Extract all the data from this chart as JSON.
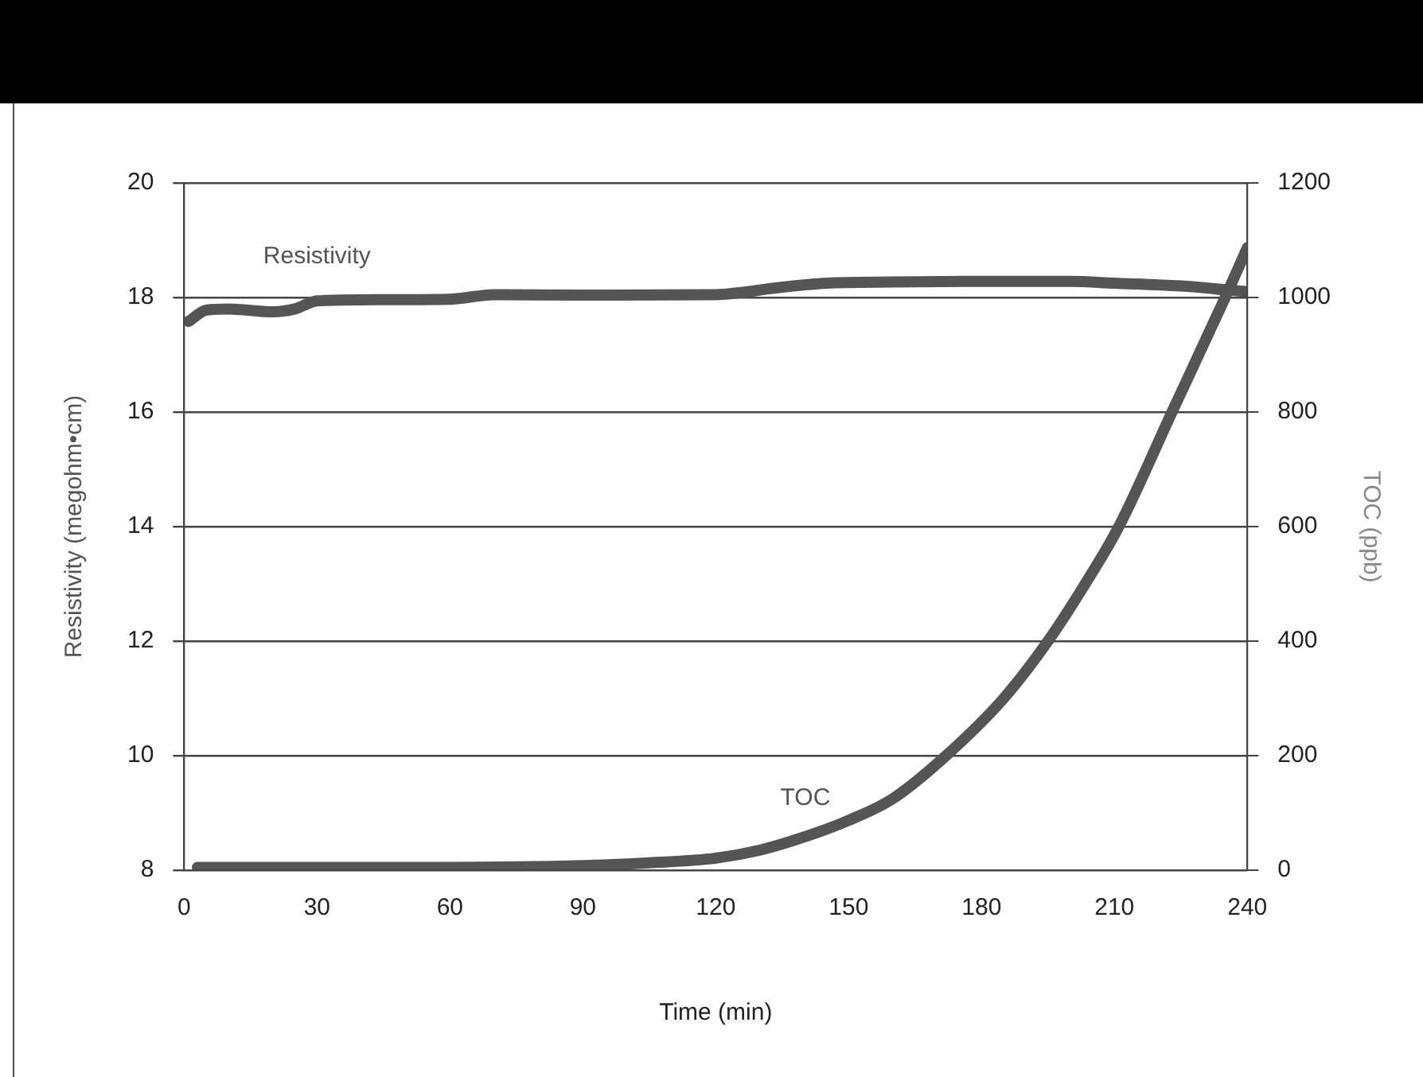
{
  "chart_data": {
    "type": "line",
    "xlabel": "Time (min)",
    "ylabel": "Resistivity (megohm•cm)",
    "y2label": "TOC (ppb)",
    "xlim": [
      0,
      240
    ],
    "xticks": [
      0,
      30,
      60,
      90,
      120,
      150,
      180,
      210,
      240
    ],
    "ylim": [
      8,
      20
    ],
    "yticks": [
      8,
      10,
      12,
      14,
      16,
      18,
      20
    ],
    "y2lim": [
      0,
      1200
    ],
    "y2ticks": [
      0,
      200,
      400,
      600,
      800,
      1000,
      1200
    ],
    "grid": "y",
    "legend": false,
    "marker": "none",
    "line_style": "solid",
    "series": [
      {
        "name": "Resistivity",
        "color": "#555555",
        "x": [
          1,
          5,
          10,
          20,
          25,
          30,
          40,
          60,
          70,
          90,
          120,
          135,
          145,
          160,
          180,
          200,
          210,
          225,
          240
        ],
        "values": [
          17.58,
          17.78,
          17.8,
          17.75,
          17.8,
          17.94,
          17.96,
          17.97,
          18.05,
          18.04,
          18.05,
          18.18,
          18.25,
          18.27,
          18.28,
          18.28,
          18.25,
          18.2,
          18.1
        ]
      },
      {
        "name": "TOC",
        "color": "#555555",
        "axis": "y2",
        "x": [
          3,
          30,
          60,
          90,
          105,
          120,
          130,
          140,
          150,
          160,
          172,
          185,
          195,
          203,
          211,
          223,
          235,
          240
        ],
        "values": [
          5,
          5,
          5,
          8,
          13,
          21,
          35,
          58,
          87,
          125,
          200,
          300,
          400,
          495,
          600,
          800,
          1000,
          1087
        ]
      }
    ]
  }
}
